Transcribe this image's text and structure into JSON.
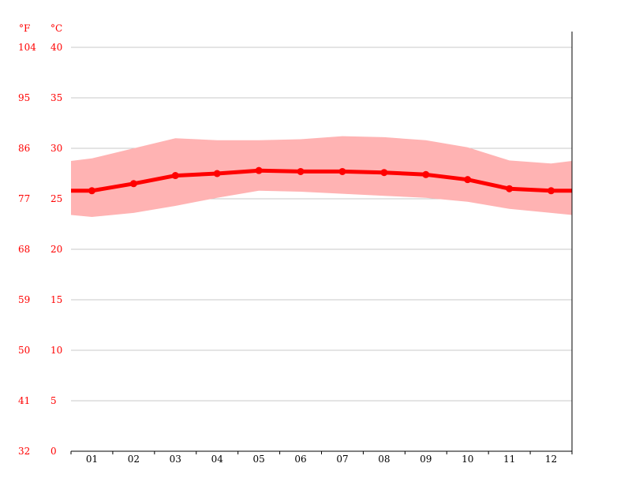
{
  "chart_data": {
    "type": "line",
    "categories": [
      "01",
      "02",
      "03",
      "04",
      "05",
      "06",
      "07",
      "08",
      "09",
      "10",
      "11",
      "12"
    ],
    "axis_units": {
      "fahrenheit": "°F",
      "celsius": "°C"
    },
    "y_ticks_celsius": [
      "0",
      "5",
      "10",
      "15",
      "20",
      "25",
      "30",
      "35",
      "40"
    ],
    "y_ticks_fahrenheit": [
      "32",
      "41",
      "50",
      "59",
      "68",
      "77",
      "86",
      "95",
      "104"
    ],
    "ylim": [
      0,
      40
    ],
    "grid": true,
    "series": [
      {
        "role": "mean",
        "values": [
          25.8,
          26.5,
          27.3,
          27.5,
          27.8,
          27.7,
          27.7,
          27.6,
          27.4,
          26.9,
          26.0,
          25.8
        ]
      },
      {
        "role": "max",
        "values": [
          29.0,
          30.0,
          31.0,
          30.8,
          30.8,
          30.9,
          31.2,
          31.1,
          30.8,
          30.1,
          28.8,
          28.5
        ]
      },
      {
        "role": "min",
        "values": [
          23.2,
          23.6,
          24.3,
          25.1,
          25.8,
          25.7,
          25.5,
          25.3,
          25.1,
          24.7,
          24.0,
          23.6
        ]
      }
    ],
    "colors": {
      "axis_text": "#ff0000",
      "line": "#ff0000",
      "band": "#ffb3b3",
      "grid": "#c8c8c8",
      "axis": "#000000"
    }
  }
}
